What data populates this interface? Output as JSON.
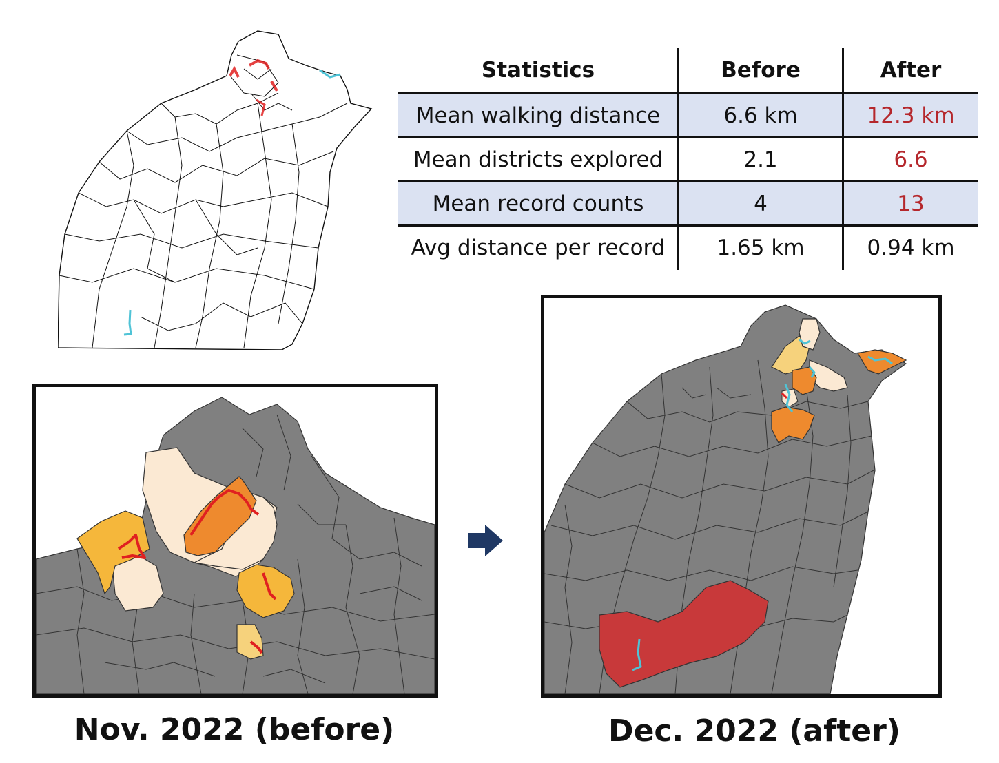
{
  "stats_table": {
    "headers": [
      "Statistics",
      "Before",
      "After"
    ],
    "rows": [
      {
        "label": "Mean walking distance",
        "before": "6.6 km",
        "after": "12.3 km",
        "after_highlight": true
      },
      {
        "label": "Mean districts explored",
        "before": "2.1",
        "after": "6.6",
        "after_highlight": true
      },
      {
        "label": "Mean record counts",
        "before": "4",
        "after": "13",
        "after_highlight": true
      },
      {
        "label": "Avg distance per record",
        "before": "1.65 km",
        "after": "0.94 km",
        "after_highlight": false
      }
    ]
  },
  "captions": {
    "before": "Nov. 2022 (before)",
    "after": "Dec. 2022 (after)"
  },
  "colors": {
    "row_shade": "#dbe2f2",
    "highlight_text": "#b5272c",
    "unvisited_district": "#808080",
    "visited_light": "#fbe9d3",
    "visited_yellow": "#f5b73b",
    "visited_orange": "#ee8a2e",
    "visited_red": "#c8393a",
    "route_red": "#e02020",
    "route_cyan": "#4fc3d6",
    "arrow": "#1f3864"
  },
  "icons": [
    "right-arrow-icon"
  ]
}
